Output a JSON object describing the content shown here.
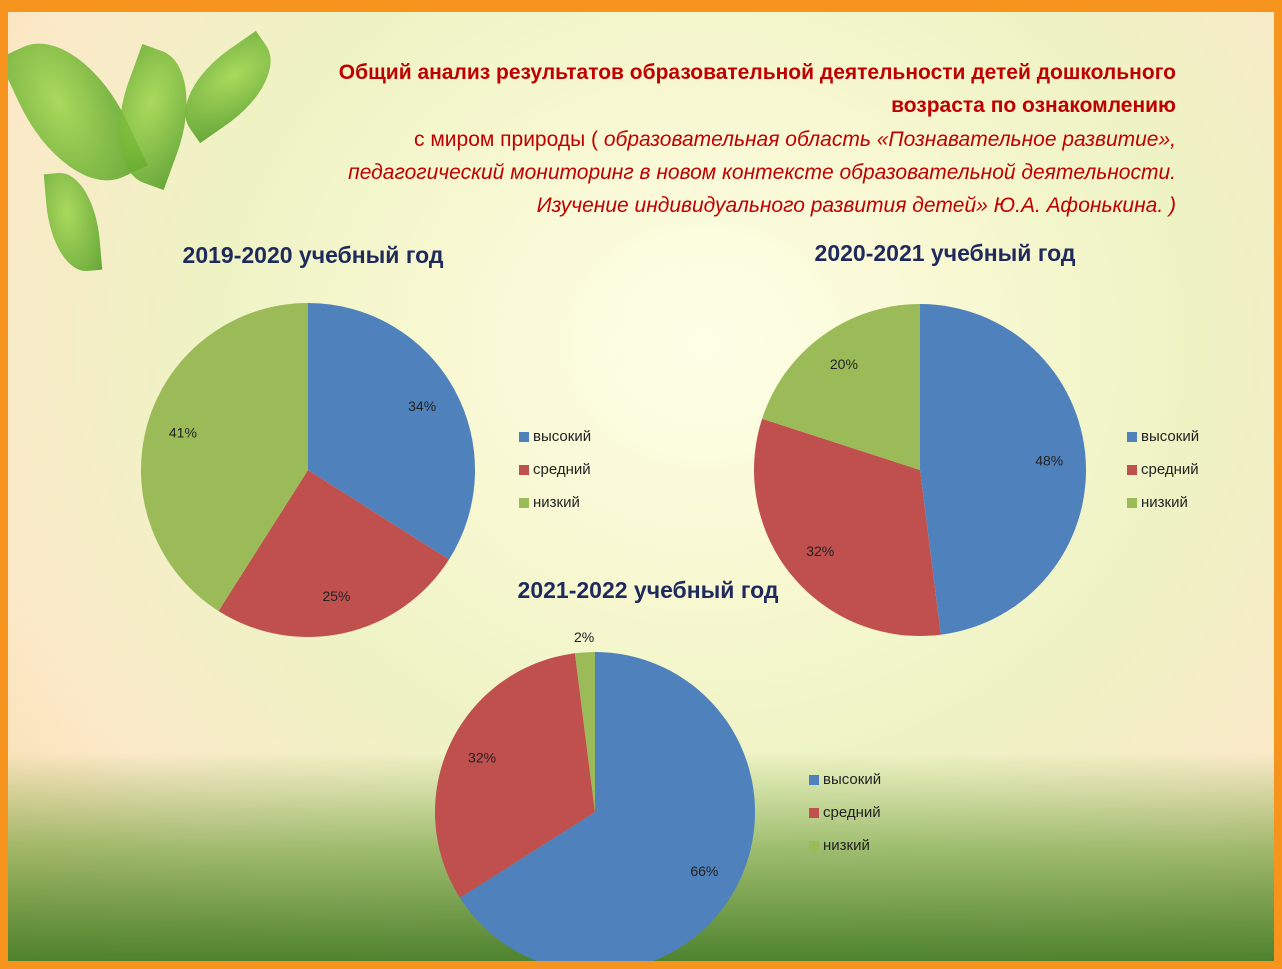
{
  "header": {
    "line1": "Общий анализ результатов образовательной деятельности детей дошкольного",
    "line2": "возраста по ознакомлению",
    "line3_regular": "с миром природы (",
    "line3_italic": "образовательная область «Познавательное развитие»,",
    "line4": "педагогический мониторинг в новом контексте образовательной деятельности.",
    "line5": "Изучение индивидуального развития детей»   Ю.А. Афонькина. )"
  },
  "chart_data": [
    {
      "type": "pie",
      "title": "2019-2020 учебный год",
      "categories": [
        "высокий",
        "средний",
        "низкий"
      ],
      "values": [
        34,
        25,
        41
      ],
      "value_labels": [
        "34%",
        "25%",
        "41%"
      ],
      "colors": [
        "#4f81bd",
        "#c0504d",
        "#9bbb59"
      ],
      "legend": "right"
    },
    {
      "type": "pie",
      "title": "2020-2021 учебный год",
      "categories": [
        "высокий",
        "средний",
        "низкий"
      ],
      "values": [
        48,
        32,
        20
      ],
      "value_labels": [
        "48%",
        "32%",
        "20%"
      ],
      "colors": [
        "#4f81bd",
        "#c0504d",
        "#9bbb59"
      ],
      "legend": "right"
    },
    {
      "type": "pie",
      "title": "2021-2022 учебный год",
      "categories": [
        "высокий",
        "средний",
        "низкий"
      ],
      "values": [
        66,
        32,
        2
      ],
      "value_labels": [
        "66%",
        "32%",
        "2%"
      ],
      "colors": [
        "#4f81bd",
        "#c0504d",
        "#9bbb59"
      ],
      "legend": "right"
    }
  ]
}
